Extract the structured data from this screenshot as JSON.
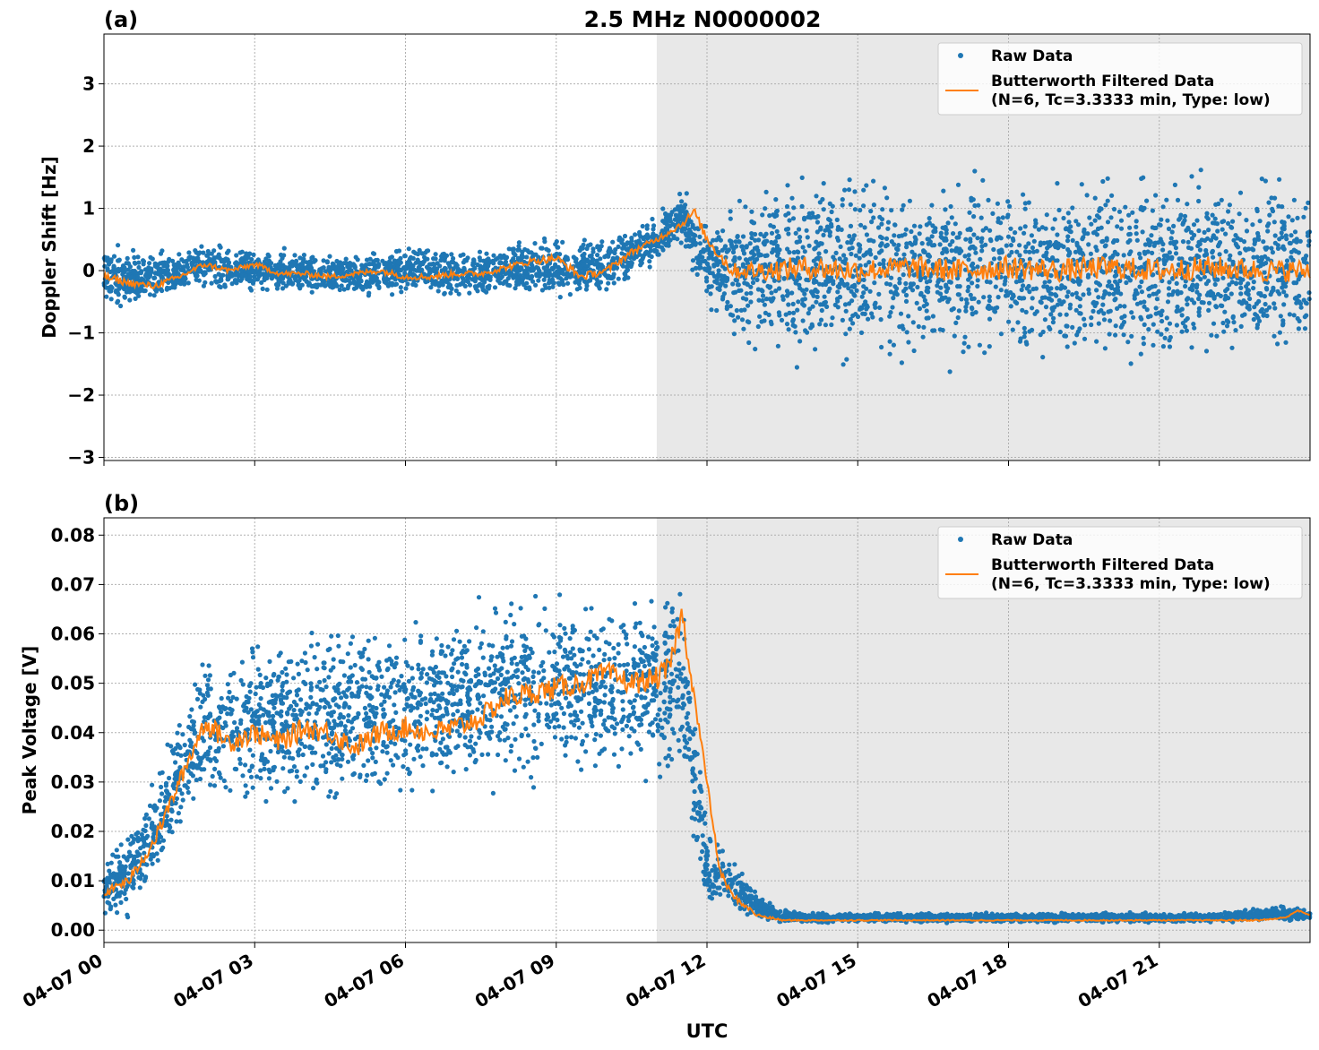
{
  "figure": {
    "title": "2.5 MHz N0000002",
    "xlabel": "UTC",
    "x_ticks": [
      "04-07 00",
      "04-07 03",
      "04-07 06",
      "04-07 09",
      "04-07 12",
      "04-07 15",
      "04-07 18",
      "04-07 21"
    ],
    "colors": {
      "raw": "#1f77b4",
      "filtered": "#ff7f0e",
      "shade": "#e8e8e8",
      "grid": "#b0b0b0"
    }
  },
  "chart_data": [
    {
      "type": "scatter",
      "panel_label": "(a)",
      "ylabel": "Doppler Shift [Hz]",
      "xlim": [
        0,
        24
      ],
      "x_unit": "hours UTC on 04-07",
      "ylim": [
        -3.05,
        3.8
      ],
      "y_ticks": [
        "3",
        "2",
        "1",
        "0",
        "−1",
        "−2",
        "−3"
      ],
      "y_tick_values": [
        3,
        2,
        1,
        0,
        -1,
        -2,
        -3
      ],
      "shaded_region": [
        11.0,
        24
      ],
      "grid": true,
      "legend": {
        "position": "top-right",
        "entries": [
          "Raw Data",
          "Butterworth Filtered Data",
          "(N=6, Tc=3.3333 min, Type: low)"
        ]
      },
      "series": [
        {
          "name": "Raw Data",
          "kind": "scatter-band",
          "x": [
            0,
            1,
            2,
            3,
            4,
            5,
            6,
            7,
            8,
            9,
            10,
            11,
            11.5,
            12,
            12.5,
            13,
            14,
            15,
            16,
            17,
            18,
            19,
            20,
            21,
            22,
            23,
            24
          ],
          "lower": [
            -0.6,
            -0.55,
            -0.3,
            -0.35,
            -0.4,
            -0.45,
            -0.4,
            -0.45,
            -0.4,
            -0.5,
            -0.4,
            0.1,
            0.4,
            -0.6,
            -1.0,
            -1.3,
            -1.5,
            -1.5,
            -1.5,
            -1.5,
            -1.5,
            -1.5,
            -1.5,
            -1.5,
            -1.5,
            -1.5,
            -1.4
          ],
          "upper": [
            0.45,
            0.3,
            0.45,
            0.35,
            0.3,
            0.3,
            0.4,
            0.35,
            0.4,
            0.6,
            0.55,
            0.9,
            1.3,
            0.7,
            1.0,
            1.4,
            1.6,
            1.6,
            1.6,
            1.6,
            1.6,
            1.6,
            1.6,
            1.6,
            1.6,
            1.6,
            1.5
          ]
        },
        {
          "name": "Butterworth Filtered Data",
          "kind": "line",
          "x": [
            0,
            0.5,
            1,
            1.5,
            2,
            2.5,
            3,
            3.5,
            4,
            4.5,
            5,
            5.5,
            6,
            6.5,
            7,
            7.5,
            8,
            8.5,
            9,
            9.5,
            10,
            10.5,
            11,
            11.5,
            11.75,
            12,
            12.5,
            13,
            14,
            15,
            16,
            17,
            18,
            19,
            20,
            21,
            22,
            23,
            24
          ],
          "y": [
            -0.1,
            -0.2,
            -0.25,
            -0.1,
            0.1,
            0.0,
            0.1,
            -0.05,
            -0.05,
            -0.1,
            -0.05,
            0.0,
            -0.1,
            -0.1,
            -0.05,
            -0.05,
            0.05,
            0.15,
            0.2,
            -0.1,
            0.0,
            0.3,
            0.5,
            0.75,
            0.95,
            0.5,
            0.0,
            0.0,
            0.05,
            0.0,
            0.05,
            0.0,
            0.05,
            0.0,
            0.05,
            0.0,
            0.05,
            0.0,
            0.0
          ]
        }
      ]
    },
    {
      "type": "scatter",
      "panel_label": "(b)",
      "ylabel": "Peak Voltage [V]",
      "xlim": [
        0,
        24
      ],
      "x_unit": "hours UTC on 04-07",
      "ylim": [
        -0.0025,
        0.0835
      ],
      "y_ticks": [
        "0.08",
        "0.07",
        "0.06",
        "0.05",
        "0.04",
        "0.03",
        "0.02",
        "0.01",
        "0.00"
      ],
      "y_tick_values": [
        0.08,
        0.07,
        0.06,
        0.05,
        0.04,
        0.03,
        0.02,
        0.01,
        0.0
      ],
      "shaded_region": [
        11.0,
        24
      ],
      "grid": true,
      "legend": {
        "position": "top-right",
        "entries": [
          "Raw Data",
          "Butterworth Filtered Data",
          "(N=6, Tc=3.3333 min, Type: low)"
        ]
      },
      "series": [
        {
          "name": "Raw Data",
          "kind": "scatter-band",
          "x": [
            0,
            0.5,
            1,
            1.5,
            2,
            3,
            4,
            5,
            6,
            7,
            8,
            9,
            10,
            11,
            11.5,
            12,
            12.5,
            13,
            13.5,
            14,
            16,
            18,
            20,
            22,
            23.5,
            24
          ],
          "lower": [
            0.002,
            0.003,
            0.008,
            0.018,
            0.024,
            0.024,
            0.024,
            0.025,
            0.026,
            0.028,
            0.03,
            0.03,
            0.03,
            0.031,
            0.03,
            0.005,
            0.004,
            0.002,
            0.0015,
            0.0015,
            0.0015,
            0.0015,
            0.0015,
            0.0015,
            0.002,
            0.0018
          ],
          "upper": [
            0.015,
            0.02,
            0.03,
            0.045,
            0.058,
            0.06,
            0.062,
            0.062,
            0.064,
            0.066,
            0.068,
            0.069,
            0.068,
            0.07,
            0.072,
            0.02,
            0.015,
            0.008,
            0.004,
            0.0035,
            0.0035,
            0.0035,
            0.0035,
            0.0035,
            0.005,
            0.004
          ]
        },
        {
          "name": "Butterworth Filtered Data",
          "kind": "line",
          "x": [
            0,
            0.25,
            0.5,
            0.75,
            1,
            1.5,
            2,
            2.5,
            3,
            3.5,
            4,
            4.5,
            5,
            5.5,
            6,
            6.5,
            7,
            7.5,
            8,
            8.5,
            9,
            9.5,
            10,
            10.5,
            11,
            11.25,
            11.5,
            11.75,
            12,
            12.25,
            12.5,
            12.75,
            13,
            13.5,
            14,
            15,
            16,
            17,
            18,
            19,
            20,
            21,
            22,
            23,
            23.5,
            23.75,
            24
          ],
          "y": [
            0.007,
            0.009,
            0.01,
            0.014,
            0.018,
            0.03,
            0.042,
            0.038,
            0.04,
            0.038,
            0.041,
            0.04,
            0.037,
            0.04,
            0.041,
            0.04,
            0.041,
            0.043,
            0.047,
            0.048,
            0.049,
            0.05,
            0.052,
            0.05,
            0.051,
            0.053,
            0.064,
            0.047,
            0.03,
            0.012,
            0.007,
            0.005,
            0.003,
            0.002,
            0.002,
            0.002,
            0.002,
            0.002,
            0.002,
            0.002,
            0.002,
            0.002,
            0.002,
            0.002,
            0.0025,
            0.004,
            0.003
          ]
        }
      ]
    }
  ]
}
